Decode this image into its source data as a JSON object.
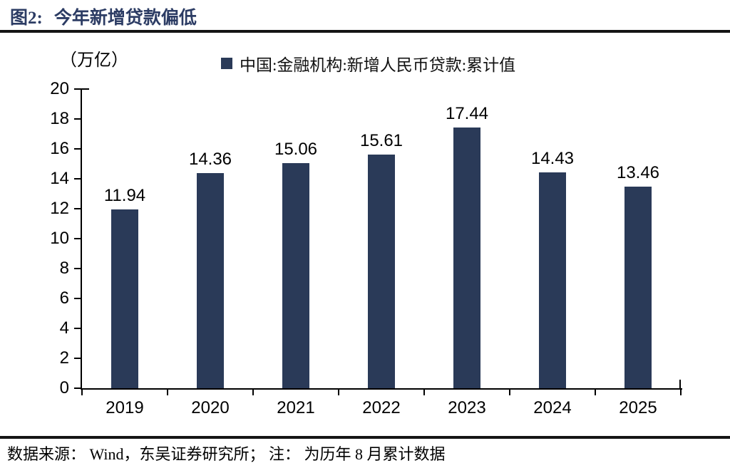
{
  "header": {
    "figure_label": "图2:",
    "title": "今年新增贷款偏低"
  },
  "chart_data": {
    "type": "bar",
    "title": "今年新增贷款偏低",
    "unit_label": "（万亿）",
    "legend": "中国:金融机构:新增人民币贷款:累计值",
    "legend_position": "top-center",
    "categories": [
      "2019",
      "2020",
      "2021",
      "2022",
      "2023",
      "2024",
      "2025"
    ],
    "values": [
      11.94,
      14.36,
      15.06,
      15.61,
      17.44,
      14.43,
      13.46
    ],
    "data_labels": [
      "11.94",
      "14.36",
      "15.06",
      "15.61",
      "17.44",
      "14.43",
      "13.46"
    ],
    "xlabel": "",
    "ylabel": "（万亿）",
    "ylim": [
      0,
      20
    ],
    "ytick_step": 2,
    "grid": false,
    "bar_color": "#2a3a58",
    "axis_color": "#000000"
  },
  "footer": {
    "text": "数据来源： Wind，东吴证券研究所； 注： 为历年 8 月累计数据"
  },
  "colors": {
    "title": "#2c3c64",
    "bar": "#2a3a58",
    "rule": "#141414"
  }
}
